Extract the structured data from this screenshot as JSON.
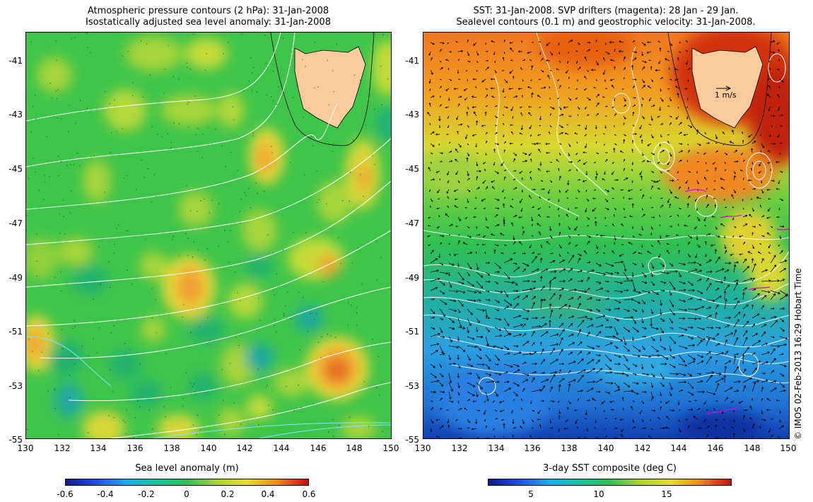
{
  "left": {
    "title_line1": "Atmospheric pressure contours (2 hPa): 31-Jan-2008",
    "title_line2": "Isostatically adjusted sea level anomaly: 31-Jan-2008",
    "colorbar_label": "Sea level anomaly (m)",
    "colorbar_ticks": [
      "-0.6",
      "-0.4",
      "-0.2",
      "0",
      "0.2",
      "0.4",
      "0.6"
    ],
    "colorbar_range": [
      -0.6,
      0.6
    ]
  },
  "right": {
    "title_line1": "SST: 31-Jan-2008. SVP drifters (magenta): 28 Jan - 29 Jan.",
    "title_line2": "Sealevel contours (0.1 m) and geostrophic velocity: 31-Jan-2008.",
    "scale_arrow_label": "1 m/s",
    "colorbar_label": "3-day SST composite (deg C)",
    "colorbar_ticks": [
      "5",
      "10",
      "15"
    ],
    "colorbar_tick_values": [
      5,
      10,
      15
    ],
    "colorbar_range": [
      1.5,
      19.5
    ]
  },
  "axes": {
    "lat_ticks": [
      "-41",
      "-43",
      "-45",
      "-47",
      "-49",
      "-51",
      "-53",
      "-55"
    ],
    "lon_ticks": [
      "130",
      "132",
      "134",
      "136",
      "138",
      "140",
      "142",
      "144",
      "146",
      "148",
      "150"
    ],
    "lon_range": [
      130,
      150
    ],
    "lat_range": [
      -55,
      -40.2
    ]
  },
  "credit": "© IMOS 02-Feb-2013 16:29 Hobart Time",
  "colors": {
    "land": "#fccb9c",
    "pressure_contour": "#ffffff",
    "drifter": "#e000e0",
    "coastline": "#000000"
  }
}
